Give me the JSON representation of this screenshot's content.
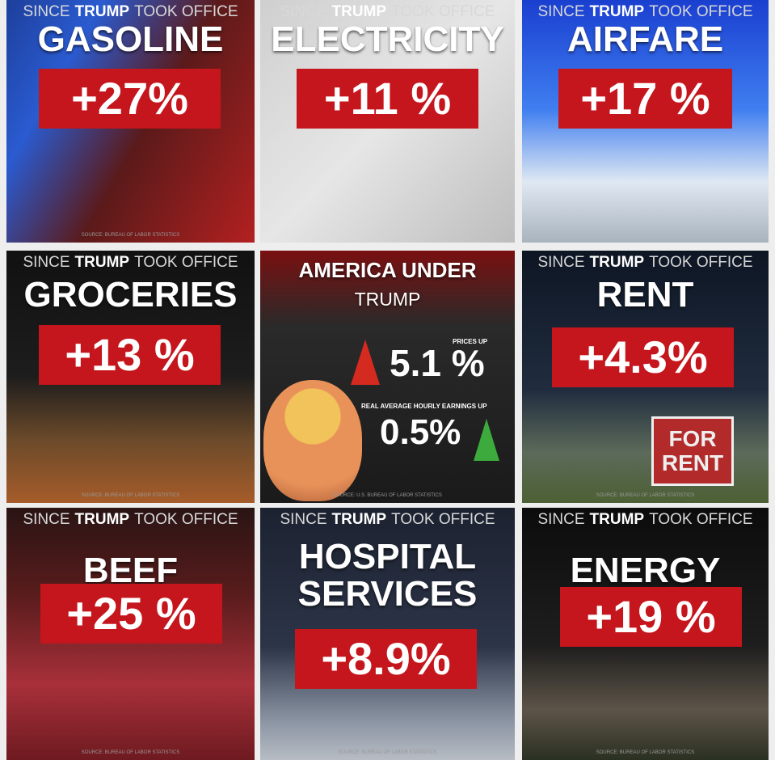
{
  "tiles": [
    {
      "header": [
        "SINCE",
        "TRUMP",
        "TOOK OFFICE"
      ],
      "title": [
        "GASOLINE"
      ],
      "change": "+27%",
      "source": "SOURCE: BUREAU OF LABOR STATISTICS"
    },
    {
      "header": [
        "SINCE",
        "TRUMP",
        "TOOK OFFICE"
      ],
      "title": [
        "ELECTRICITY"
      ],
      "change": "+11 %"
    },
    {
      "header": [
        "SINCE",
        "TRUMP",
        "TOOK OFFICE"
      ],
      "title": [
        "AIRFARE"
      ],
      "change": "+17 %"
    },
    {
      "header": [
        "SINCE",
        "TRUMP",
        "TOOK OFFICE"
      ],
      "title": [
        "GROCERIES"
      ],
      "change": "+13 %",
      "source": "SOURCE: BUREAU OF LABOR STATISTICS"
    },
    {
      "title": [
        "AMERICA UNDER",
        "TRUMP"
      ],
      "prices_label": "PRICES UP",
      "prices_value": "5.1 %",
      "earnings_label": "REAL AVERAGE HOURLY EARNINGS UP",
      "earnings_value": "0.5%",
      "source": "SOURCE: U.S. BUREAU OF LABOR STATISTICS"
    },
    {
      "header": [
        "SINCE",
        "TRUMP",
        "TOOK OFFICE"
      ],
      "title": [
        "RENT"
      ],
      "change": "+4.3%",
      "sign": [
        "FOR",
        "RENT"
      ],
      "source": "SOURCE: BUREAU OF LABOR STATISTICS"
    },
    {
      "header": [
        "SINCE",
        "TRUMP",
        "TOOK OFFICE"
      ],
      "title": [
        "BEEF"
      ],
      "change": "+25 %",
      "source": "SOURCE: BUREAU OF LABOR STATISTICS"
    },
    {
      "header": [
        "SINCE",
        "TRUMP",
        "TOOK OFFICE"
      ],
      "title": [
        "HOSPITAL",
        "SERVICES"
      ],
      "change": "+8.9%",
      "source": "SOURCE: BUREAU OF LABOR STATISTICS"
    },
    {
      "header": [
        "SINCE",
        "TRUMP",
        "TOOK OFFICE"
      ],
      "title": [
        "ENERGY"
      ],
      "change": "+19 %",
      "source": "SOURCE: BUREAU OF LABOR STATISTICS"
    }
  ]
}
